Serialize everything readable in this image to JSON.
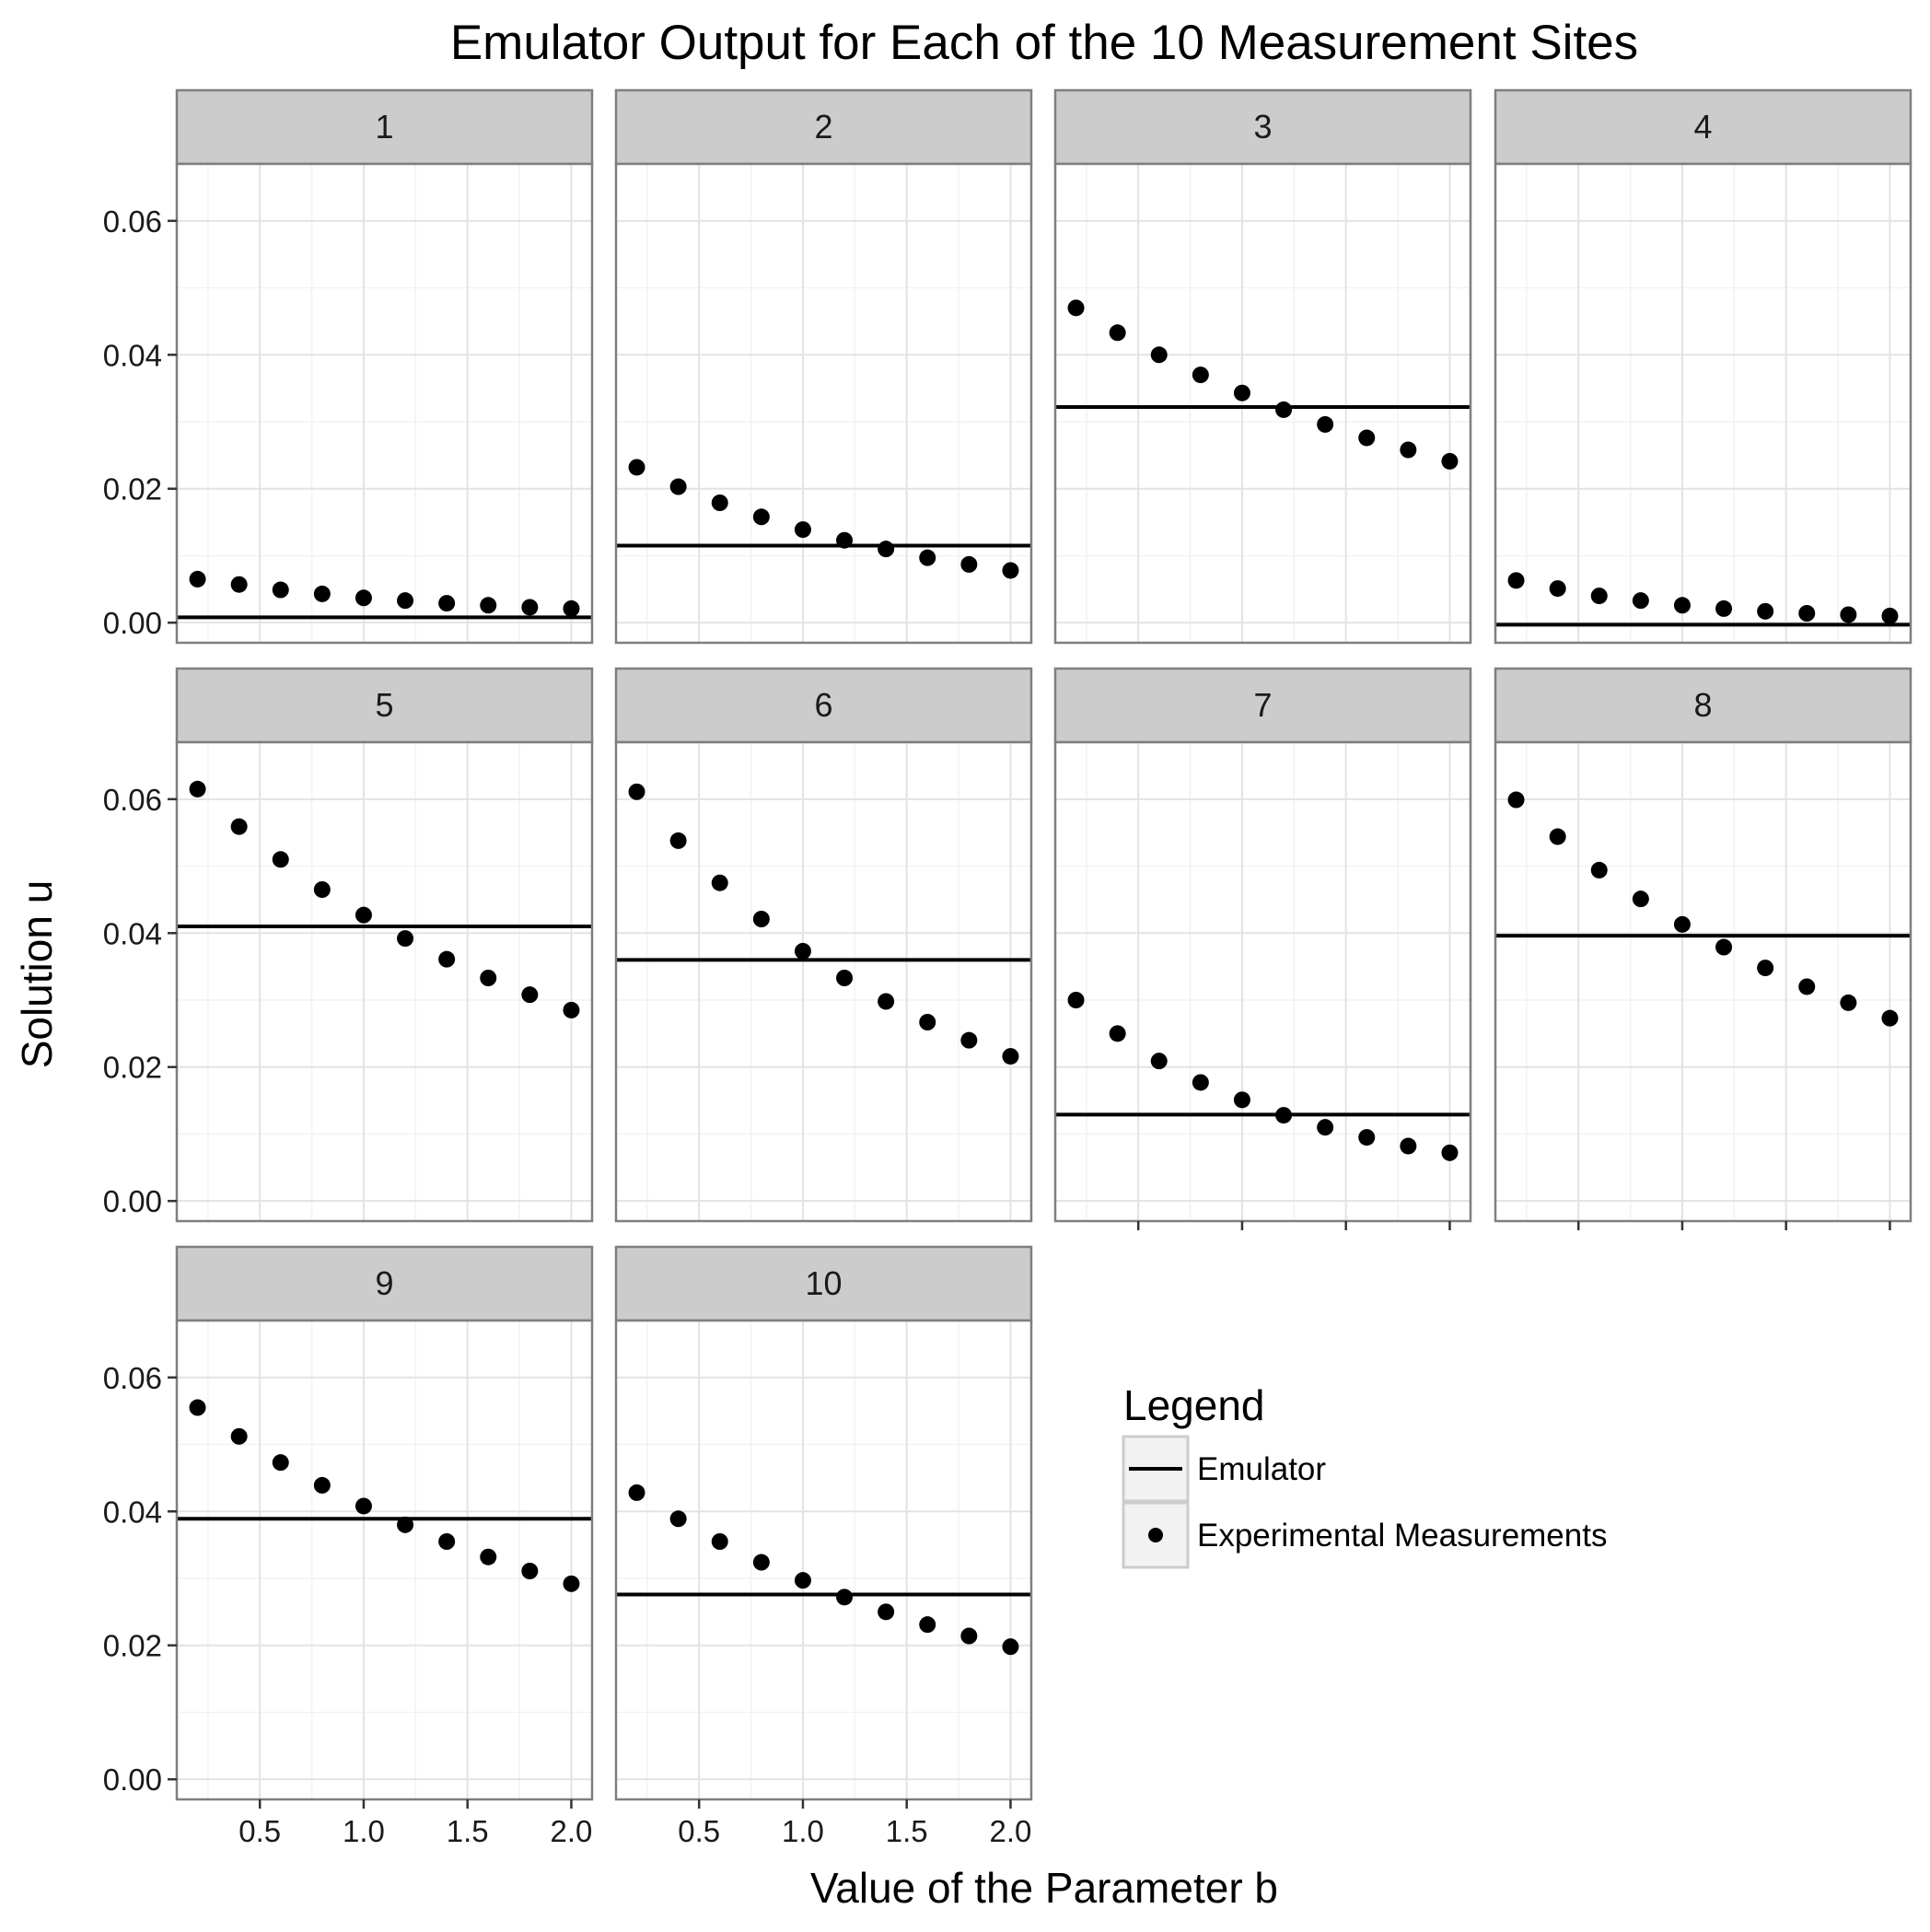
{
  "chart_data": {
    "type": "scatter",
    "title": "Emulator Output for Each of the 10 Measurement Sites",
    "xlabel": "Value of the Parameter b",
    "ylabel": "Solution u",
    "xlim": [
      0.1,
      2.1
    ],
    "ylim": [
      -0.003,
      0.0685
    ],
    "x_ticks": [
      0.5,
      1.0,
      1.5,
      2.0
    ],
    "x_tick_labels": [
      "0.5",
      "1.0",
      "1.5",
      "2.0"
    ],
    "y_ticks": [
      0.0,
      0.02,
      0.04,
      0.06
    ],
    "y_tick_labels": [
      "0.00",
      "0.02",
      "0.04",
      "0.06"
    ],
    "grid": true,
    "legend": {
      "title": "Legend",
      "placement": "bottom-right",
      "entries": [
        {
          "key": "line",
          "label": "Emulator"
        },
        {
          "key": "point",
          "label": "Experimental Measurements"
        }
      ]
    },
    "x": [
      0.2,
      0.4,
      0.6,
      0.8,
      1.0,
      1.2,
      1.4,
      1.6,
      1.8,
      2.0
    ],
    "panels": [
      {
        "label": "1",
        "emulator": 0.0008,
        "measurements": [
          0.0065,
          0.0057,
          0.0049,
          0.0043,
          0.0037,
          0.0033,
          0.0029,
          0.0026,
          0.0023,
          0.0021
        ]
      },
      {
        "label": "2",
        "emulator": 0.0115,
        "measurements": [
          0.0232,
          0.0203,
          0.0179,
          0.0158,
          0.0139,
          0.0123,
          0.011,
          0.0097,
          0.0087,
          0.0078
        ]
      },
      {
        "label": "3",
        "emulator": 0.0322,
        "measurements": [
          0.047,
          0.0433,
          0.04,
          0.037,
          0.0343,
          0.0318,
          0.0296,
          0.0276,
          0.0258,
          0.0241
        ]
      },
      {
        "label": "4",
        "emulator": -0.0003,
        "measurements": [
          0.0063,
          0.0051,
          0.004,
          0.0033,
          0.0026,
          0.0021,
          0.0017,
          0.0014,
          0.0012,
          0.001
        ]
      },
      {
        "label": "5",
        "emulator": 0.041,
        "measurements": [
          0.0615,
          0.0559,
          0.051,
          0.0465,
          0.0427,
          0.0392,
          0.0361,
          0.0333,
          0.0308,
          0.0285
        ]
      },
      {
        "label": "6",
        "emulator": 0.036,
        "measurements": [
          0.0611,
          0.0538,
          0.0475,
          0.0421,
          0.0373,
          0.0333,
          0.0298,
          0.0267,
          0.024,
          0.0216
        ]
      },
      {
        "label": "7",
        "emulator": 0.0129,
        "measurements": [
          0.03,
          0.025,
          0.0209,
          0.0177,
          0.0151,
          0.0128,
          0.011,
          0.0095,
          0.0082,
          0.0072
        ]
      },
      {
        "label": "8",
        "emulator": 0.0396,
        "measurements": [
          0.0599,
          0.0544,
          0.0494,
          0.0451,
          0.0413,
          0.0379,
          0.0348,
          0.032,
          0.0296,
          0.0273
        ]
      },
      {
        "label": "9",
        "emulator": 0.0389,
        "measurements": [
          0.0555,
          0.0512,
          0.0473,
          0.0439,
          0.0408,
          0.038,
          0.0355,
          0.0332,
          0.0311,
          0.0292
        ]
      },
      {
        "label": "10",
        "emulator": 0.0276,
        "measurements": [
          0.0428,
          0.0389,
          0.0355,
          0.0324,
          0.0297,
          0.0272,
          0.025,
          0.0231,
          0.0214,
          0.0198
        ]
      }
    ]
  }
}
